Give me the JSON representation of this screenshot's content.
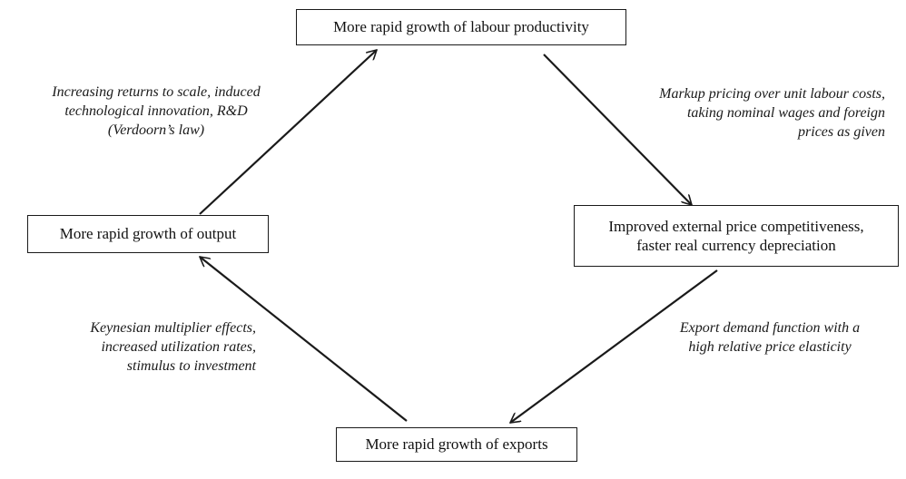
{
  "nodes": {
    "productivity": "More rapid growth of labour productivity",
    "competitiveness_line1": "Improved external price competitiveness,",
    "competitiveness_line2": "faster real currency depreciation",
    "exports": "More rapid growth of exports",
    "output": "More rapid growth of output"
  },
  "edges": {
    "markup": {
      "line1": "Markup pricing over unit labour costs,",
      "line2": "taking nominal wages and foreign",
      "line3": "prices as given"
    },
    "export_demand": {
      "line1": "Export demand function with a",
      "line2": "high relative price elasticity"
    },
    "keynesian": {
      "line1": "Keynesian multiplier effects,",
      "line2": "increased utilization rates,",
      "line3": "stimulus to investment"
    },
    "verdoorn": {
      "line1": "Increasing returns to scale, induced",
      "line2": "technological innovation, R&D",
      "line3": "(Verdoorn’s law)"
    }
  }
}
